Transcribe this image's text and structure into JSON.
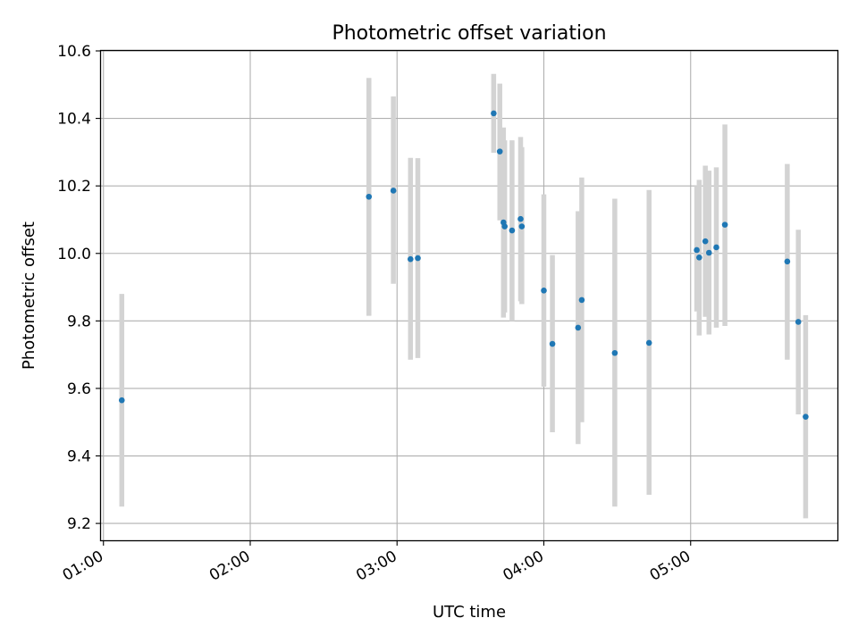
{
  "chart_data": {
    "type": "scatter",
    "title": "Photometric offset variation",
    "xlabel": "UTC time",
    "ylabel": "Photometric offset",
    "x_tick_labels": [
      "01:00",
      "02:00",
      "03:00",
      "04:00",
      "05:00"
    ],
    "x_ticks": [
      "01:00",
      "02:00",
      "03:00",
      "04:00",
      "05:00"
    ],
    "y_ticks": [
      9.2,
      9.4,
      9.6,
      9.8,
      10.0,
      10.2,
      10.4,
      10.6
    ],
    "y_tick_labels": [
      "9.2",
      "9.4",
      "9.6",
      "9.8",
      "10.0",
      "10.2",
      "10.4",
      "10.6"
    ],
    "xlim": [
      "00:59",
      "06:00"
    ],
    "ylim": [
      9.15,
      10.6
    ],
    "grid": true,
    "series": [
      {
        "marker_color": "#1f77b4",
        "errorbar_color": "#d3d3d3",
        "points": [
          {
            "x": "01:07:30",
            "y": 9.565,
            "low": 9.25,
            "high": 9.88
          },
          {
            "x": "02:48:30",
            "y": 10.168,
            "low": 9.815,
            "high": 10.52
          },
          {
            "x": "02:58:30",
            "y": 10.186,
            "low": 9.91,
            "high": 10.465
          },
          {
            "x": "03:05:30",
            "y": 9.983,
            "low": 9.685,
            "high": 10.283
          },
          {
            "x": "03:08:30",
            "y": 9.986,
            "low": 9.69,
            "high": 10.282
          },
          {
            "x": "03:39:30",
            "y": 10.415,
            "low": 10.298,
            "high": 10.532
          },
          {
            "x": "03:42:00",
            "y": 10.302,
            "low": 10.098,
            "high": 10.503
          },
          {
            "x": "03:43:30",
            "y": 10.092,
            "low": 9.81,
            "high": 10.373
          },
          {
            "x": "03:44:00",
            "y": 10.08,
            "low": 9.825,
            "high": 10.335
          },
          {
            "x": "03:47:00",
            "y": 10.068,
            "low": 9.8,
            "high": 10.335
          },
          {
            "x": "03:50:30",
            "y": 10.102,
            "low": 9.858,
            "high": 10.345
          },
          {
            "x": "03:51:00",
            "y": 10.08,
            "low": 9.85,
            "high": 10.315
          },
          {
            "x": "04:00:00",
            "y": 9.89,
            "low": 9.605,
            "high": 10.175
          },
          {
            "x": "04:03:30",
            "y": 9.732,
            "low": 9.47,
            "high": 9.995
          },
          {
            "x": "04:14:00",
            "y": 9.78,
            "low": 9.435,
            "high": 10.125
          },
          {
            "x": "04:15:30",
            "y": 9.862,
            "low": 9.5,
            "high": 10.225
          },
          {
            "x": "04:29:00",
            "y": 9.705,
            "low": 9.25,
            "high": 10.162
          },
          {
            "x": "04:43:00",
            "y": 9.735,
            "low": 9.285,
            "high": 10.188
          },
          {
            "x": "05:02:30",
            "y": 10.01,
            "low": 9.828,
            "high": 10.2
          },
          {
            "x": "05:03:30",
            "y": 9.988,
            "low": 9.757,
            "high": 10.218
          },
          {
            "x": "05:06:00",
            "y": 10.036,
            "low": 9.812,
            "high": 10.26
          },
          {
            "x": "05:07:30",
            "y": 10.002,
            "low": 9.76,
            "high": 10.245
          },
          {
            "x": "05:10:30",
            "y": 10.018,
            "low": 9.78,
            "high": 10.255
          },
          {
            "x": "05:14:00",
            "y": 10.085,
            "low": 9.785,
            "high": 10.382
          },
          {
            "x": "05:39:30",
            "y": 9.976,
            "low": 9.685,
            "high": 10.265
          },
          {
            "x": "05:44:00",
            "y": 9.797,
            "low": 9.523,
            "high": 10.07
          },
          {
            "x": "05:47:00",
            "y": 9.516,
            "low": 9.215,
            "high": 9.817
          }
        ]
      }
    ]
  }
}
